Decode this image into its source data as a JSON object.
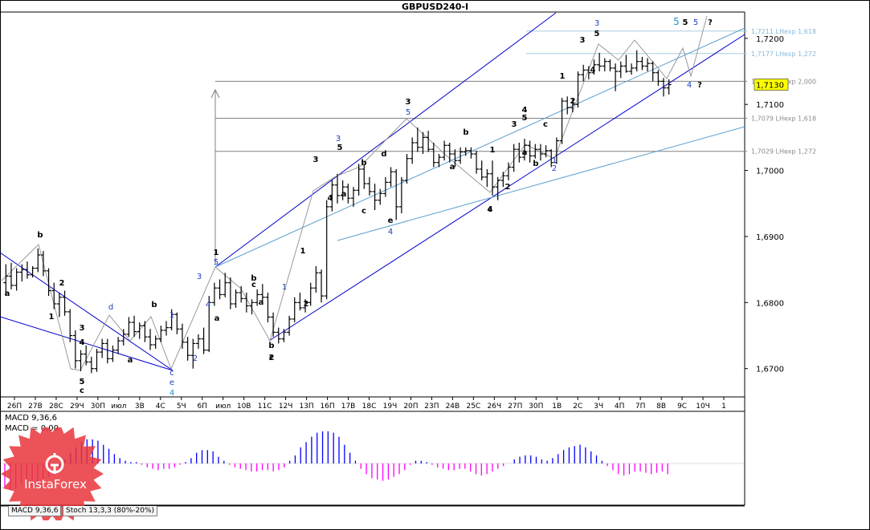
{
  "header": {
    "title": "GBPUSD240-I"
  },
  "tabs": [
    "MACD 9,36,6",
    "Stoch 13,3,3 (80%-20%)"
  ],
  "branding": {
    "logo_text": "InstaForex"
  },
  "colors": {
    "candle": "#000000",
    "grid": "#808080",
    "fib_line": "#808080",
    "fib_label": "#8a8a8a",
    "fib_top_label": "#87b8d8",
    "channel": "#0000cc",
    "trendline": "#5aa0d0",
    "current_price_bg": "#ffff00",
    "macd_positive": "#0000ff",
    "macd_negative": "#ff00ff",
    "label_blue": "#1e3fbf",
    "label_cyan": "#1e90c8",
    "label_black": "#000000"
  },
  "chart_data": {
    "type": "candlestick",
    "symbol": "GBPUSD",
    "timeframe": "H4",
    "ylim": [
      1.6662,
      1.7235
    ],
    "y_ticks": [
      "1,7200",
      "1,7100",
      "1,7000",
      "1,6900",
      "1,6800",
      "1,6700"
    ],
    "current_price": "1,7130",
    "x_ticks": [
      "26П",
      "27В",
      "28С",
      "29Ч",
      "30П",
      "июл",
      "3В",
      "4С",
      "5Ч",
      "6П",
      "июл",
      "10В",
      "11С",
      "12Ч",
      "13П",
      "16П",
      "17В",
      "18С",
      "19Ч",
      "20П",
      "23П",
      "24В",
      "25С",
      "26Ч",
      "27П",
      "30П",
      "1В",
      "2С",
      "3Ч",
      "4П",
      "7П",
      "8В",
      "9С",
      "10Ч",
      "1"
    ],
    "fib_levels": [
      {
        "price": 1.7211,
        "label": "1,7211 LHexp 1,618"
      },
      {
        "price": 1.7177,
        "label": "1,7177 LHexp 1,272"
      },
      {
        "price": 1.7135,
        "label": "1,7135 LHexp 2,000"
      },
      {
        "price": 1.7079,
        "label": "1,7079 LHexp 1,618"
      },
      {
        "price": 1.7029,
        "label": "1,7029 LHexp 1,272"
      }
    ],
    "ohlc": [
      [
        1.683,
        1.6858,
        1.681,
        1.684
      ],
      [
        1.684,
        1.686,
        1.682,
        1.6826
      ],
      [
        1.6826,
        1.6852,
        1.6818,
        1.6846
      ],
      [
        1.6846,
        1.6858,
        1.6832,
        1.685
      ],
      [
        1.685,
        1.6862,
        1.6836,
        1.6842
      ],
      [
        1.6842,
        1.6855,
        1.6838,
        1.6852
      ],
      [
        1.6852,
        1.6882,
        1.6846,
        1.6872
      ],
      [
        1.6872,
        1.6878,
        1.684,
        1.6848
      ],
      [
        1.6848,
        1.6852,
        1.681,
        1.6818
      ],
      [
        1.6818,
        1.683,
        1.679,
        1.6798
      ],
      [
        1.6798,
        1.6815,
        1.6778,
        1.6808
      ],
      [
        1.6808,
        1.6818,
        1.678,
        1.6786
      ],
      [
        1.6786,
        1.679,
        1.674,
        1.675
      ],
      [
        1.675,
        1.6758,
        1.67,
        1.6712
      ],
      [
        1.6712,
        1.6728,
        1.6696,
        1.6722
      ],
      [
        1.6722,
        1.6735,
        1.6705,
        1.671
      ],
      [
        1.671,
        1.6718,
        1.6693,
        1.67
      ],
      [
        1.67,
        1.673,
        1.6695,
        1.6725
      ],
      [
        1.6725,
        1.6745,
        1.6716,
        1.6738
      ],
      [
        1.6738,
        1.6745,
        1.6708,
        1.6715
      ],
      [
        1.6715,
        1.6735,
        1.671,
        1.6728
      ],
      [
        1.6728,
        1.6748,
        1.6722,
        1.6742
      ],
      [
        1.6742,
        1.676,
        1.6735,
        1.6752
      ],
      [
        1.6752,
        1.6778,
        1.6748,
        1.677
      ],
      [
        1.677,
        1.678,
        1.6748,
        1.6756
      ],
      [
        1.6756,
        1.677,
        1.6745,
        1.6765
      ],
      [
        1.6765,
        1.6772,
        1.674,
        1.6748
      ],
      [
        1.6748,
        1.676,
        1.6728,
        1.6736
      ],
      [
        1.6736,
        1.675,
        1.673,
        1.6745
      ],
      [
        1.6745,
        1.6765,
        1.674,
        1.6758
      ],
      [
        1.6758,
        1.6772,
        1.675,
        1.6762
      ],
      [
        1.6762,
        1.679,
        1.6758,
        1.6782
      ],
      [
        1.6782,
        1.6785,
        1.6752,
        1.676
      ],
      [
        1.676,
        1.6768,
        1.673,
        1.674
      ],
      [
        1.674,
        1.6748,
        1.6712,
        1.672
      ],
      [
        1.672,
        1.6745,
        1.67,
        1.6738
      ],
      [
        1.6738,
        1.6752,
        1.673,
        1.6745
      ],
      [
        1.6745,
        1.6762,
        1.6722,
        1.6728
      ],
      [
        1.6728,
        1.681,
        1.6725,
        1.68
      ],
      [
        1.68,
        1.683,
        1.6795,
        1.6822
      ],
      [
        1.6822,
        1.6835,
        1.6805,
        1.6812
      ],
      [
        1.6812,
        1.6845,
        1.6808,
        1.683
      ],
      [
        1.683,
        1.6838,
        1.679,
        1.6798
      ],
      [
        1.6798,
        1.682,
        1.6792,
        1.6815
      ],
      [
        1.6815,
        1.6825,
        1.68,
        1.6806
      ],
      [
        1.6806,
        1.6815,
        1.6785,
        1.6795
      ],
      [
        1.6795,
        1.6805,
        1.6782,
        1.68
      ],
      [
        1.68,
        1.682,
        1.6795,
        1.6812
      ],
      [
        1.6812,
        1.6828,
        1.6802,
        1.6808
      ],
      [
        1.6808,
        1.6815,
        1.677,
        1.6778
      ],
      [
        1.6778,
        1.6785,
        1.6748,
        1.6755
      ],
      [
        1.6755,
        1.6762,
        1.6738,
        1.6745
      ],
      [
        1.6745,
        1.676,
        1.674,
        1.6755
      ],
      [
        1.6755,
        1.678,
        1.675,
        1.6775
      ],
      [
        1.6775,
        1.6808,
        1.677,
        1.68
      ],
      [
        1.68,
        1.6815,
        1.6788,
        1.6792
      ],
      [
        1.6792,
        1.6805,
        1.6785,
        1.68
      ],
      [
        1.68,
        1.683,
        1.6795,
        1.6822
      ],
      [
        1.6822,
        1.6855,
        1.6815,
        1.6845
      ],
      [
        1.6845,
        1.685,
        1.68,
        1.681
      ],
      [
        1.681,
        1.6955,
        1.6805,
        1.6945
      ],
      [
        1.6945,
        1.6985,
        1.6938,
        1.6978
      ],
      [
        1.6978,
        1.6995,
        1.695,
        1.6962
      ],
      [
        1.6962,
        1.6985,
        1.6955,
        1.6975
      ],
      [
        1.6975,
        1.698,
        1.695,
        1.6958
      ],
      [
        1.6958,
        1.6975,
        1.6945,
        1.697
      ],
      [
        1.697,
        1.701,
        1.6962,
        1.7002
      ],
      [
        1.7002,
        1.7008,
        1.6972,
        1.698
      ],
      [
        1.698,
        1.699,
        1.6962,
        1.6968
      ],
      [
        1.6968,
        1.698,
        1.694,
        1.6955
      ],
      [
        1.6955,
        1.6972,
        1.6948,
        1.6965
      ],
      [
        1.6965,
        1.699,
        1.696,
        1.6982
      ],
      [
        1.6982,
        1.7005,
        1.6975,
        1.6998
      ],
      [
        1.6998,
        1.7002,
        1.6925,
        1.6945
      ],
      [
        1.6945,
        1.699,
        1.6935,
        1.6985
      ],
      [
        1.6985,
        1.7025,
        1.698,
        1.7018
      ],
      [
        1.7018,
        1.705,
        1.701,
        1.7042
      ],
      [
        1.7042,
        1.7065,
        1.7028,
        1.7035
      ],
      [
        1.7035,
        1.7058,
        1.7025,
        1.705
      ],
      [
        1.705,
        1.706,
        1.7028,
        1.7032
      ],
      [
        1.7032,
        1.7042,
        1.7005,
        1.7012
      ],
      [
        1.7012,
        1.7025,
        1.7005,
        1.702
      ],
      [
        1.702,
        1.7045,
        1.7015,
        1.7038
      ],
      [
        1.7038,
        1.7042,
        1.7012,
        1.7025
      ],
      [
        1.7025,
        1.7032,
        1.7005,
        1.7015
      ],
      [
        1.7015,
        1.7035,
        1.701,
        1.7028
      ],
      [
        1.7028,
        1.7035,
        1.7022,
        1.703
      ],
      [
        1.703,
        1.7035,
        1.7018,
        1.7025
      ],
      [
        1.7025,
        1.703,
        1.6995,
        1.7002
      ],
      [
        1.7002,
        1.7015,
        1.6985,
        1.699
      ],
      [
        1.699,
        1.7002,
        1.6975,
        1.6995
      ],
      [
        1.6995,
        1.7015,
        1.6962,
        1.6975
      ],
      [
        1.6975,
        1.699,
        1.6955,
        1.6985
      ],
      [
        1.6985,
        1.6998,
        1.6975,
        1.6992
      ],
      [
        1.6992,
        1.7012,
        1.6985,
        1.7005
      ],
      [
        1.7005,
        1.704,
        1.6998,
        1.7032
      ],
      [
        1.7032,
        1.7042,
        1.7012,
        1.702
      ],
      [
        1.702,
        1.7048,
        1.7015,
        1.7038
      ],
      [
        1.7038,
        1.7045,
        1.7012,
        1.7022
      ],
      [
        1.7022,
        1.704,
        1.7018,
        1.7032
      ],
      [
        1.7032,
        1.704,
        1.7015,
        1.7025
      ],
      [
        1.7025,
        1.7038,
        1.702,
        1.703
      ],
      [
        1.703,
        1.7032,
        1.7005,
        1.7012
      ],
      [
        1.7012,
        1.705,
        1.701,
        1.7045
      ],
      [
        1.7045,
        1.711,
        1.704,
        1.7105
      ],
      [
        1.7105,
        1.7112,
        1.7085,
        1.7095
      ],
      [
        1.7095,
        1.7108,
        1.7088,
        1.71
      ],
      [
        1.71,
        1.715,
        1.7095,
        1.7145
      ],
      [
        1.7145,
        1.716,
        1.7135,
        1.7152
      ],
      [
        1.7152,
        1.7158,
        1.7138,
        1.7148
      ],
      [
        1.7148,
        1.7168,
        1.7145,
        1.716
      ],
      [
        1.716,
        1.7178,
        1.715,
        1.7158
      ],
      [
        1.7158,
        1.717,
        1.715,
        1.7165
      ],
      [
        1.7165,
        1.7168,
        1.715,
        1.7155
      ],
      [
        1.7155,
        1.7162,
        1.712,
        1.715
      ],
      [
        1.715,
        1.7165,
        1.714,
        1.7158
      ],
      [
        1.7158,
        1.7175,
        1.7148,
        1.715
      ],
      [
        1.715,
        1.7162,
        1.7145,
        1.7155
      ],
      [
        1.7155,
        1.7182,
        1.715,
        1.7165
      ],
      [
        1.7165,
        1.7172,
        1.7152,
        1.7158
      ],
      [
        1.7158,
        1.717,
        1.715,
        1.7162
      ],
      [
        1.7162,
        1.7165,
        1.7135,
        1.7148
      ],
      [
        1.7148,
        1.7152,
        1.7128,
        1.7135
      ],
      [
        1.7135,
        1.714,
        1.7112,
        1.7125
      ],
      [
        1.7125,
        1.7138,
        1.7115,
        1.713
      ]
    ],
    "macd_hist": [
      -0.0018,
      -0.002,
      -0.0019,
      -0.0015,
      -0.0016,
      -0.0018,
      -0.0017,
      -0.0014,
      -0.001,
      -0.0008,
      -0.0004,
      0.0003,
      0.0008,
      0.0012,
      0.0016,
      0.0018,
      0.0018,
      0.0017,
      0.0014,
      0.0011,
      0.0007,
      0.0004,
      0.0002,
      0.0001,
      0.0001,
      -0.0001,
      -0.0003,
      -0.0004,
      -0.0005,
      -0.0004,
      -0.0004,
      -0.0003,
      -0.0001,
      0.0001,
      0.0004,
      0.0008,
      0.001,
      0.001,
      0.0009,
      0.0005,
      0.0002,
      -0.0001,
      -0.0003,
      -0.0004,
      -0.0005,
      -0.0006,
      -0.0006,
      -0.0005,
      -0.0005,
      -0.0006,
      -0.0005,
      -0.0003,
      0.0002,
      0.0006,
      0.0012,
      0.0016,
      0.002,
      0.0023,
      0.0024,
      0.0024,
      0.0023,
      0.002,
      0.0014,
      0.0008,
      0.0002,
      -0.0004,
      -0.0008,
      -0.0011,
      -0.0012,
      -0.0013,
      -0.0012,
      -0.001,
      -0.0008,
      -0.0005,
      -0.0001,
      0.0002,
      0.0002,
      0.0001,
      -0.0001,
      -0.0003,
      -0.0004,
      -0.0005,
      -0.0005,
      -0.0004,
      -0.0004,
      -0.0006,
      -0.0008,
      -0.0009,
      -0.0008,
      -0.0006,
      -0.0004,
      -0.0002,
      0.0,
      0.0003,
      0.0005,
      0.0006,
      0.0006,
      0.0005,
      0.0003,
      0.0002,
      0.0004,
      0.0007,
      0.001,
      0.0012,
      0.0013,
      0.0014,
      0.0012,
      0.0009,
      0.0006,
      0.0002,
      -0.0002,
      -0.0005,
      -0.0008,
      -0.0009,
      -0.0008,
      -0.0006,
      -0.0006,
      -0.0007,
      -0.0008,
      -0.0007,
      -0.0006,
      -0.0008
    ],
    "macd_label": "MACD 9,36,6",
    "macd_zero_label": "MACD = 0,00",
    "wave_labels": [
      {
        "t": "a",
        "c": "black"
      },
      {
        "t": "b",
        "c": "black"
      },
      {
        "t": "1",
        "c": "black"
      },
      {
        "t": "2",
        "c": "black"
      },
      {
        "t": "3",
        "c": "black"
      },
      {
        "t": "4",
        "c": "black"
      },
      {
        "t": "5",
        "c": "black"
      },
      {
        "t": "c",
        "c": "black"
      },
      {
        "t": "d",
        "c": "blue"
      },
      {
        "t": "a",
        "c": "black"
      },
      {
        "t": "b",
        "c": "black"
      },
      {
        "t": "1",
        "c": "blue"
      },
      {
        "t": "c",
        "c": "blue"
      },
      {
        "t": "e",
        "c": "blue"
      },
      {
        "t": "4",
        "c": "cyan"
      },
      {
        "t": "2",
        "c": "blue"
      },
      {
        "t": "3",
        "c": "blue"
      },
      {
        "t": "4",
        "c": "blue"
      },
      {
        "t": "1",
        "c": "black"
      },
      {
        "t": "5",
        "c": "blue"
      },
      {
        "t": "a",
        "c": "black"
      },
      {
        "t": "b",
        "c": "black"
      },
      {
        "t": "c",
        "c": "black"
      },
      {
        "t": "a",
        "c": "black"
      },
      {
        "t": "b",
        "c": "black"
      },
      {
        "t": "c",
        "c": "black"
      },
      {
        "t": "2",
        "c": "black"
      },
      {
        "t": "1",
        "c": "blue"
      },
      {
        "t": "1",
        "c": "black"
      },
      {
        "t": "2",
        "c": "black"
      },
      {
        "t": "3",
        "c": "black"
      },
      {
        "t": "4",
        "c": "black"
      },
      {
        "t": "3",
        "c": "blue"
      },
      {
        "t": "5",
        "c": "black"
      },
      {
        "t": "a",
        "c": "black"
      },
      {
        "t": "b",
        "c": "black"
      },
      {
        "t": "c",
        "c": "black"
      },
      {
        "t": "d",
        "c": "black"
      },
      {
        "t": "e",
        "c": "black"
      },
      {
        "t": "4",
        "c": "blue"
      },
      {
        "t": "3",
        "c": "black"
      },
      {
        "t": "5",
        "c": "blue"
      },
      {
        "t": "a",
        "c": "black"
      },
      {
        "t": "b",
        "c": "black"
      },
      {
        "t": "c",
        "c": "black"
      },
      {
        "t": "4",
        "c": "black"
      },
      {
        "t": "1",
        "c": "black"
      },
      {
        "t": "2",
        "c": "black"
      },
      {
        "t": "3",
        "c": "black"
      },
      {
        "t": "4",
        "c": "black"
      },
      {
        "t": "5",
        "c": "black"
      },
      {
        "t": "a",
        "c": "black"
      },
      {
        "t": "b",
        "c": "black"
      },
      {
        "t": "c",
        "c": "black"
      },
      {
        "t": "1",
        "c": "blue"
      },
      {
        "t": "2",
        "c": "blue"
      },
      {
        "t": "1",
        "c": "black"
      },
      {
        "t": "2",
        "c": "black"
      },
      {
        "t": "3",
        "c": "black"
      },
      {
        "t": "4",
        "c": "black"
      },
      {
        "t": "5",
        "c": "black"
      },
      {
        "t": "3",
        "c": "blue"
      },
      {
        "t": "4",
        "c": "blue"
      },
      {
        "t": "?",
        "c": "black"
      },
      {
        "t": "5",
        "c": "cyan"
      },
      {
        "t": "5",
        "c": "black"
      },
      {
        "t": "5",
        "c": "blue"
      },
      {
        "t": "?",
        "c": "black"
      }
    ]
  }
}
